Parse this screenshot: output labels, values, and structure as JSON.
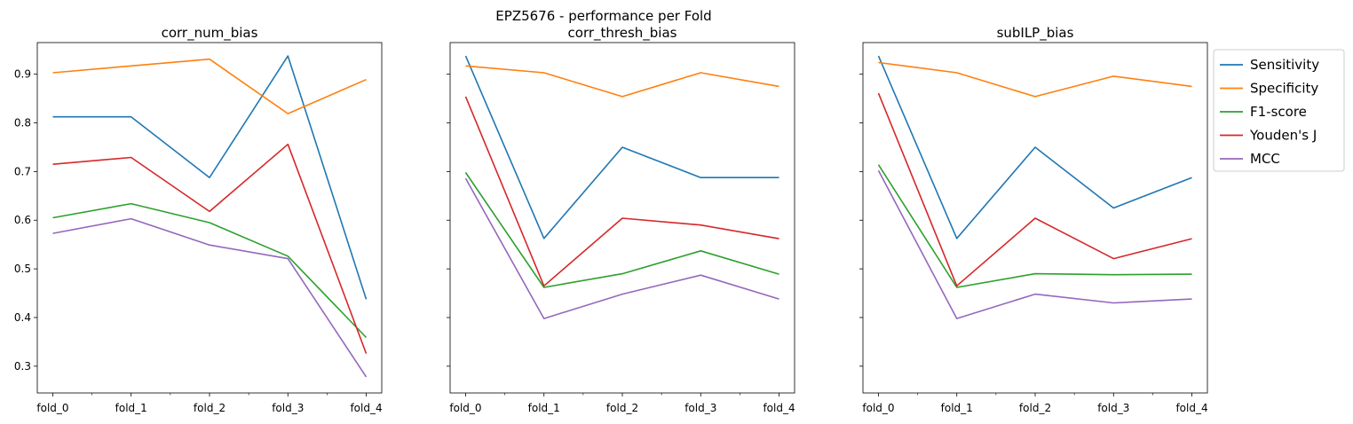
{
  "figure": {
    "suptitle": "EPZ5676 - performance per Fold"
  },
  "chart_data": [
    {
      "type": "line",
      "title": "corr_num_bias",
      "xlabel": "",
      "ylabel": "",
      "categories": [
        "fold_0",
        "fold_1",
        "fold_2",
        "fold_3",
        "fold_4"
      ],
      "ylim": [
        0.245,
        0.965
      ],
      "yticks": [
        "0.3",
        "0.4",
        "0.5",
        "0.6",
        "0.7",
        "0.8",
        "0.9"
      ],
      "grid": false,
      "series": [
        {
          "name": "Sensitivity",
          "color": "#1f77b4",
          "values": [
            0.8125,
            0.8125,
            0.6875,
            0.9375,
            0.4375
          ]
        },
        {
          "name": "Specificity",
          "color": "#ff7f0e",
          "values": [
            0.903,
            0.917,
            0.931,
            0.819,
            0.889
          ]
        },
        {
          "name": "F1-score",
          "color": "#2ca02c",
          "values": [
            0.605,
            0.634,
            0.595,
            0.526,
            0.359
          ]
        },
        {
          "name": "Youden's J",
          "color": "#d62728",
          "values": [
            0.715,
            0.729,
            0.618,
            0.756,
            0.326
          ]
        },
        {
          "name": "MCC",
          "color": "#9467bd",
          "values": [
            0.573,
            0.603,
            0.549,
            0.521,
            0.278
          ]
        }
      ]
    },
    {
      "type": "line",
      "title": "corr_thresh_bias",
      "xlabel": "",
      "ylabel": "",
      "categories": [
        "fold_0",
        "fold_1",
        "fold_2",
        "fold_3",
        "fold_4"
      ],
      "ylim": [
        0.245,
        0.965
      ],
      "yticks": [
        "0.3",
        "0.4",
        "0.5",
        "0.6",
        "0.7",
        "0.8",
        "0.9"
      ],
      "grid": false,
      "series": [
        {
          "name": "Sensitivity",
          "color": "#1f77b4",
          "values": [
            0.9375,
            0.5625,
            0.75,
            0.6875,
            0.6875
          ]
        },
        {
          "name": "Specificity",
          "color": "#ff7f0e",
          "values": [
            0.917,
            0.903,
            0.854,
            0.903,
            0.875
          ]
        },
        {
          "name": "F1-score",
          "color": "#2ca02c",
          "values": [
            0.698,
            0.462,
            0.49,
            0.537,
            0.489
          ]
        },
        {
          "name": "Youden's J",
          "color": "#d62728",
          "values": [
            0.854,
            0.465,
            0.604,
            0.59,
            0.562
          ]
        },
        {
          "name": "MCC",
          "color": "#9467bd",
          "values": [
            0.686,
            0.398,
            0.448,
            0.487,
            0.438
          ]
        }
      ]
    },
    {
      "type": "line",
      "title": "subILP_bias",
      "xlabel": "",
      "ylabel": "",
      "categories": [
        "fold_0",
        "fold_1",
        "fold_2",
        "fold_3",
        "fold_4"
      ],
      "ylim": [
        0.245,
        0.965
      ],
      "yticks": [
        "0.3",
        "0.4",
        "0.5",
        "0.6",
        "0.7",
        "0.8",
        "0.9"
      ],
      "grid": false,
      "series": [
        {
          "name": "Sensitivity",
          "color": "#1f77b4",
          "values": [
            0.9375,
            0.5625,
            0.75,
            0.625,
            0.6875
          ]
        },
        {
          "name": "Specificity",
          "color": "#ff7f0e",
          "values": [
            0.924,
            0.903,
            0.854,
            0.896,
            0.875
          ]
        },
        {
          "name": "F1-score",
          "color": "#2ca02c",
          "values": [
            0.714,
            0.462,
            0.49,
            0.488,
            0.489
          ]
        },
        {
          "name": "Youden's J",
          "color": "#d62728",
          "values": [
            0.861,
            0.465,
            0.604,
            0.521,
            0.562
          ]
        },
        {
          "name": "MCC",
          "color": "#9467bd",
          "values": [
            0.702,
            0.398,
            0.448,
            0.43,
            0.438
          ]
        }
      ]
    }
  ],
  "legend": {
    "placement": "outside-right-top",
    "entries": [
      {
        "label": "Sensitivity",
        "color": "#1f77b4"
      },
      {
        "label": "Specificity",
        "color": "#ff7f0e"
      },
      {
        "label": "F1-score",
        "color": "#2ca02c"
      },
      {
        "label": "Youden's J",
        "color": "#d62728"
      },
      {
        "label": "MCC",
        "color": "#9467bd"
      }
    ]
  }
}
